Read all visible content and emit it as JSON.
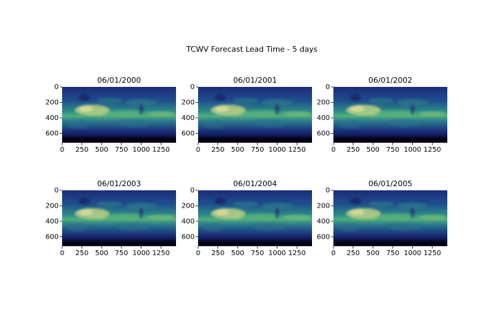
{
  "title": "TCWV Forecast Lead Time - 5 days",
  "chart_data": [
    {
      "type": "image",
      "title": "06/01/2000",
      "xlim": [
        0,
        1440
      ],
      "ylim": [
        720,
        0
      ],
      "xticks": [
        0,
        250,
        500,
        750,
        1000,
        1250
      ],
      "yticks": [
        0,
        200,
        400,
        600
      ]
    },
    {
      "type": "image",
      "title": "06/01/2001",
      "xlim": [
        0,
        1440
      ],
      "ylim": [
        720,
        0
      ],
      "xticks": [
        0,
        250,
        500,
        750,
        1000,
        1250
      ],
      "yticks": [
        0,
        200,
        400,
        600
      ]
    },
    {
      "type": "image",
      "title": "06/01/2002",
      "xlim": [
        0,
        1440
      ],
      "ylim": [
        720,
        0
      ],
      "xticks": [
        0,
        250,
        500,
        750,
        1000,
        1250
      ],
      "yticks": [
        0,
        200,
        400,
        600
      ]
    },
    {
      "type": "image",
      "title": "06/01/2003",
      "xlim": [
        0,
        1440
      ],
      "ylim": [
        720,
        0
      ],
      "xticks": [
        0,
        250,
        500,
        750,
        1000,
        1250
      ],
      "yticks": [
        0,
        200,
        400,
        600
      ]
    },
    {
      "type": "image",
      "title": "06/01/2004",
      "xlim": [
        0,
        1440
      ],
      "ylim": [
        720,
        0
      ],
      "xticks": [
        0,
        250,
        500,
        750,
        1000,
        1250
      ],
      "yticks": [
        0,
        200,
        400,
        600
      ]
    },
    {
      "type": "image",
      "title": "06/01/2005",
      "xlim": [
        0,
        1440
      ],
      "ylim": [
        720,
        0
      ],
      "xticks": [
        0,
        250,
        500,
        750,
        1000,
        1250
      ],
      "yticks": [
        0,
        200,
        400,
        600
      ]
    }
  ]
}
